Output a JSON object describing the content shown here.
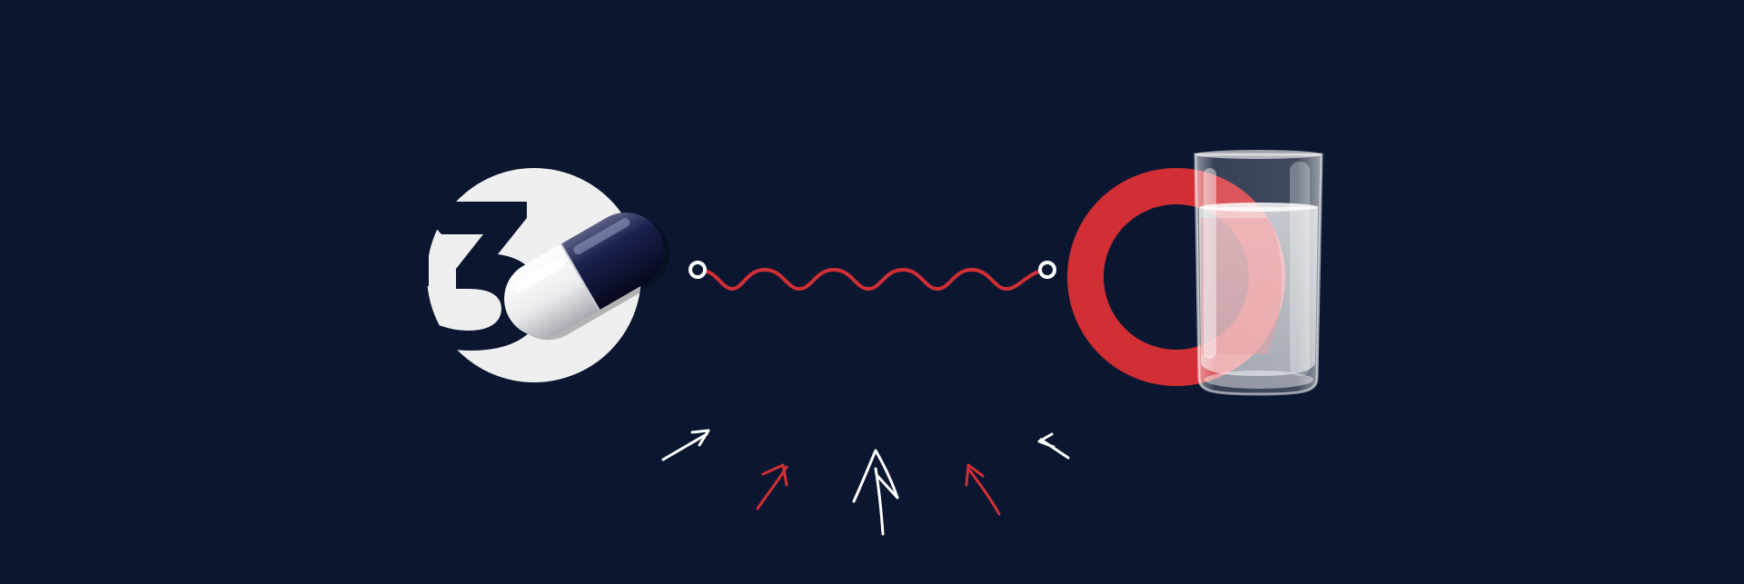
{
  "scene": {
    "background_color": "#0b1730",
    "left_badge": {
      "icon": "number-three-circle-icon",
      "number": "3",
      "circle_color": "#efefef"
    },
    "pill": {
      "icon": "capsule-icon",
      "light_half_color": "#f4f4f6",
      "dark_half_color": "#12183a"
    },
    "connector": {
      "icon": "wavy-line-icon",
      "color": "#d12f35",
      "endpoint_color": "#ffffff"
    },
    "ring": {
      "icon": "red-ring-icon",
      "color": "#d12f35"
    },
    "glass": {
      "icon": "water-glass-icon"
    },
    "arrows": [
      {
        "icon": "arrow-up-right-icon",
        "color": "#ffffff"
      },
      {
        "icon": "arrow-up-right-icon",
        "color": "#d12f35"
      },
      {
        "icon": "arrow-up-icon",
        "color": "#ffffff"
      },
      {
        "icon": "arrow-up-left-icon",
        "color": "#d12f35"
      },
      {
        "icon": "arrow-up-left-icon",
        "color": "#ffffff"
      }
    ]
  }
}
